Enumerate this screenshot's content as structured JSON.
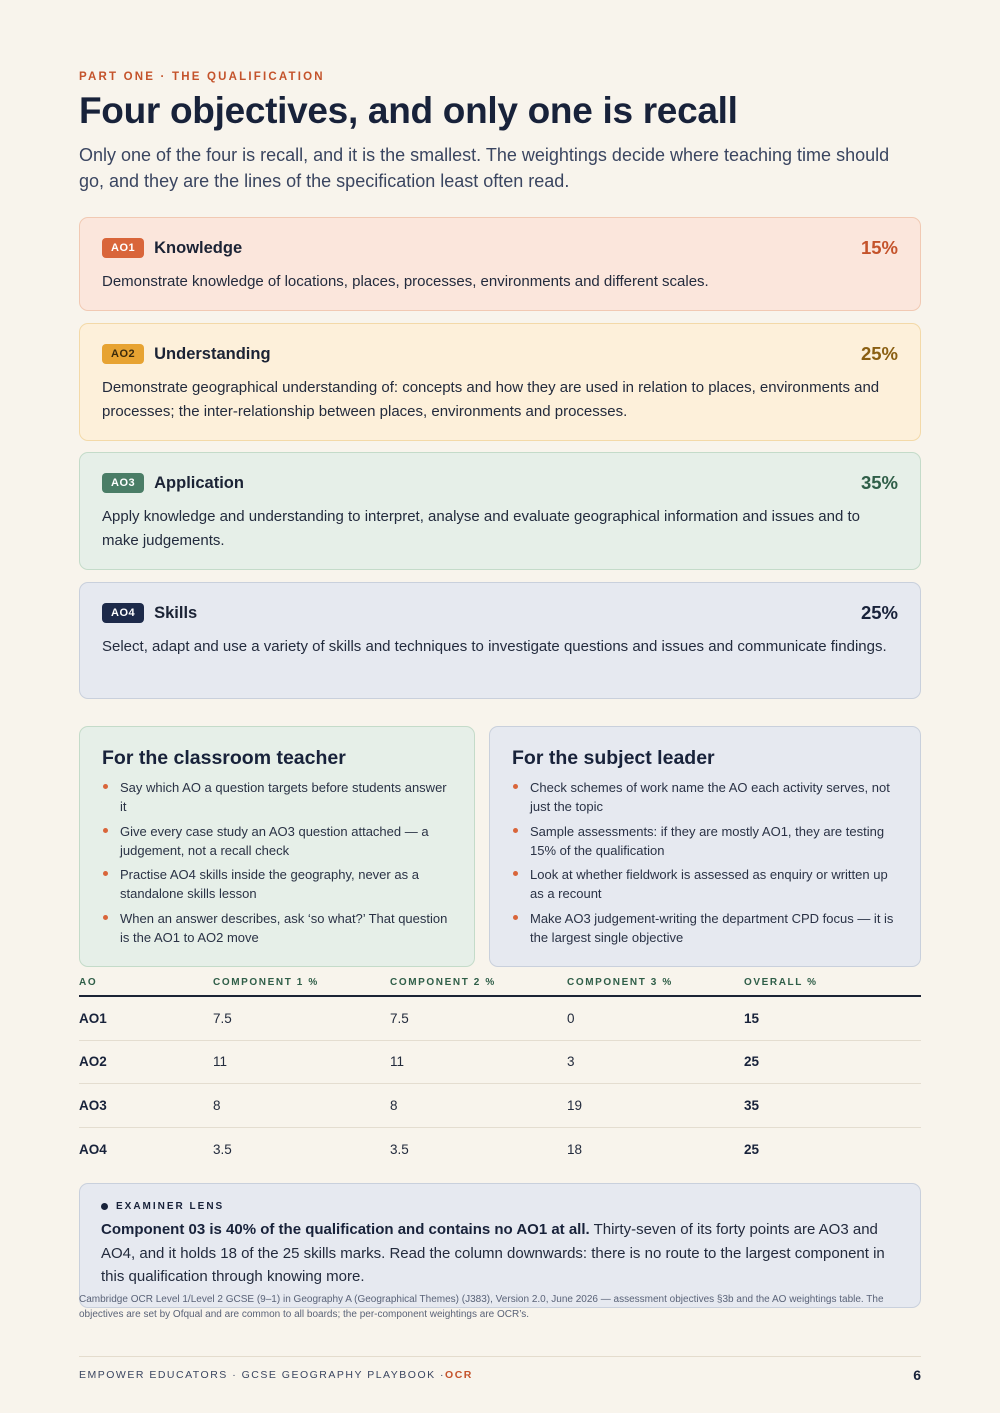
{
  "kicker": "PART ONE · THE QUALIFICATION",
  "title": "Four objectives, and only one is recall",
  "lede": "Only one of the four is recall, and it is the smallest. The weightings decide where teaching time should go, and they are the lines of the specification least often read.",
  "objectives": [
    {
      "code": "AO1",
      "name": "Knowledge",
      "pct": "15%",
      "desc": "Demonstrate knowledge of locations, places, processes, environments and different scales."
    },
    {
      "code": "AO2",
      "name": "Understanding",
      "pct": "25%",
      "desc": "Demonstrate geographical understanding of: concepts and how they are used in relation to places, environments and processes; the inter-relationship between places, environments and processes."
    },
    {
      "code": "AO3",
      "name": "Application",
      "pct": "35%",
      "desc": "Apply knowledge and understanding to interpret, analyse and evaluate geographical information and issues and to make judgements."
    },
    {
      "code": "AO4",
      "name": "Skills",
      "pct": "25%",
      "desc": "Select, adapt and use a variety of skills and techniques to investigate questions and issues and communicate findings."
    }
  ],
  "teacher": {
    "heading": "For the classroom teacher",
    "items": [
      "Say which AO a question targets before students answer it",
      "Give every case study an AO3 question attached — a judgement, not a recall check",
      "Practise AO4 skills inside the geography, never as a standalone skills lesson",
      "When an answer describes, ask ‘so what?’ That question is the AO1 to AO2 move"
    ]
  },
  "leader": {
    "heading": "For the subject leader",
    "items": [
      "Check schemes of work name the AO each activity serves, not just the topic",
      "Sample assessments: if they are mostly AO1, they are testing 15% of the qualification",
      "Look at whether fieldwork is assessed as enquiry or written up as a recount",
      "Make AO3 judgement-writing the department CPD focus — it is the largest single objective"
    ]
  },
  "table": {
    "headers": [
      "AO",
      "COMPONENT 1 %",
      "COMPONENT 2 %",
      "COMPONENT 3 %",
      "OVERALL %"
    ],
    "rows": [
      [
        "AO1",
        "7.5",
        "7.5",
        "0",
        "15"
      ],
      [
        "AO2",
        "11",
        "11",
        "3",
        "25"
      ],
      [
        "AO3",
        "8",
        "8",
        "19",
        "35"
      ],
      [
        "AO4",
        "3.5",
        "3.5",
        "18",
        "25"
      ]
    ]
  },
  "lens": {
    "label": "EXAMINER LENS",
    "bold": "Component 03 is 40% of the qualification and contains no AO1 at all.",
    "rest": " Thirty-seven of its forty points are AO3 and AO4, and it holds 18 of the 25 skills marks. Read the column downwards: there is no route to the largest component in this qualification through knowing more."
  },
  "source": "Cambridge OCR Level 1/Level 2 GCSE (9–1) in Geography A (Geographical Themes) (J383), Version 2.0, June 2026 — assessment objectives §3b and the AO weightings table. The objectives are set by Ofqual and are common to all boards; the per-component weightings are OCR’s.",
  "footer": {
    "brand": "EMPOWER EDUCATORS · GCSE GEOGRAPHY PLAYBOOK · ",
    "board": "OCR",
    "page": "6"
  },
  "colors": {
    "accent": "#c4532b",
    "ao1": "#d9653a",
    "ao2": "#e7a332",
    "ao3": "#4a7d66",
    "ao4": "#1d2a4a",
    "background": "#f8f4ec"
  }
}
